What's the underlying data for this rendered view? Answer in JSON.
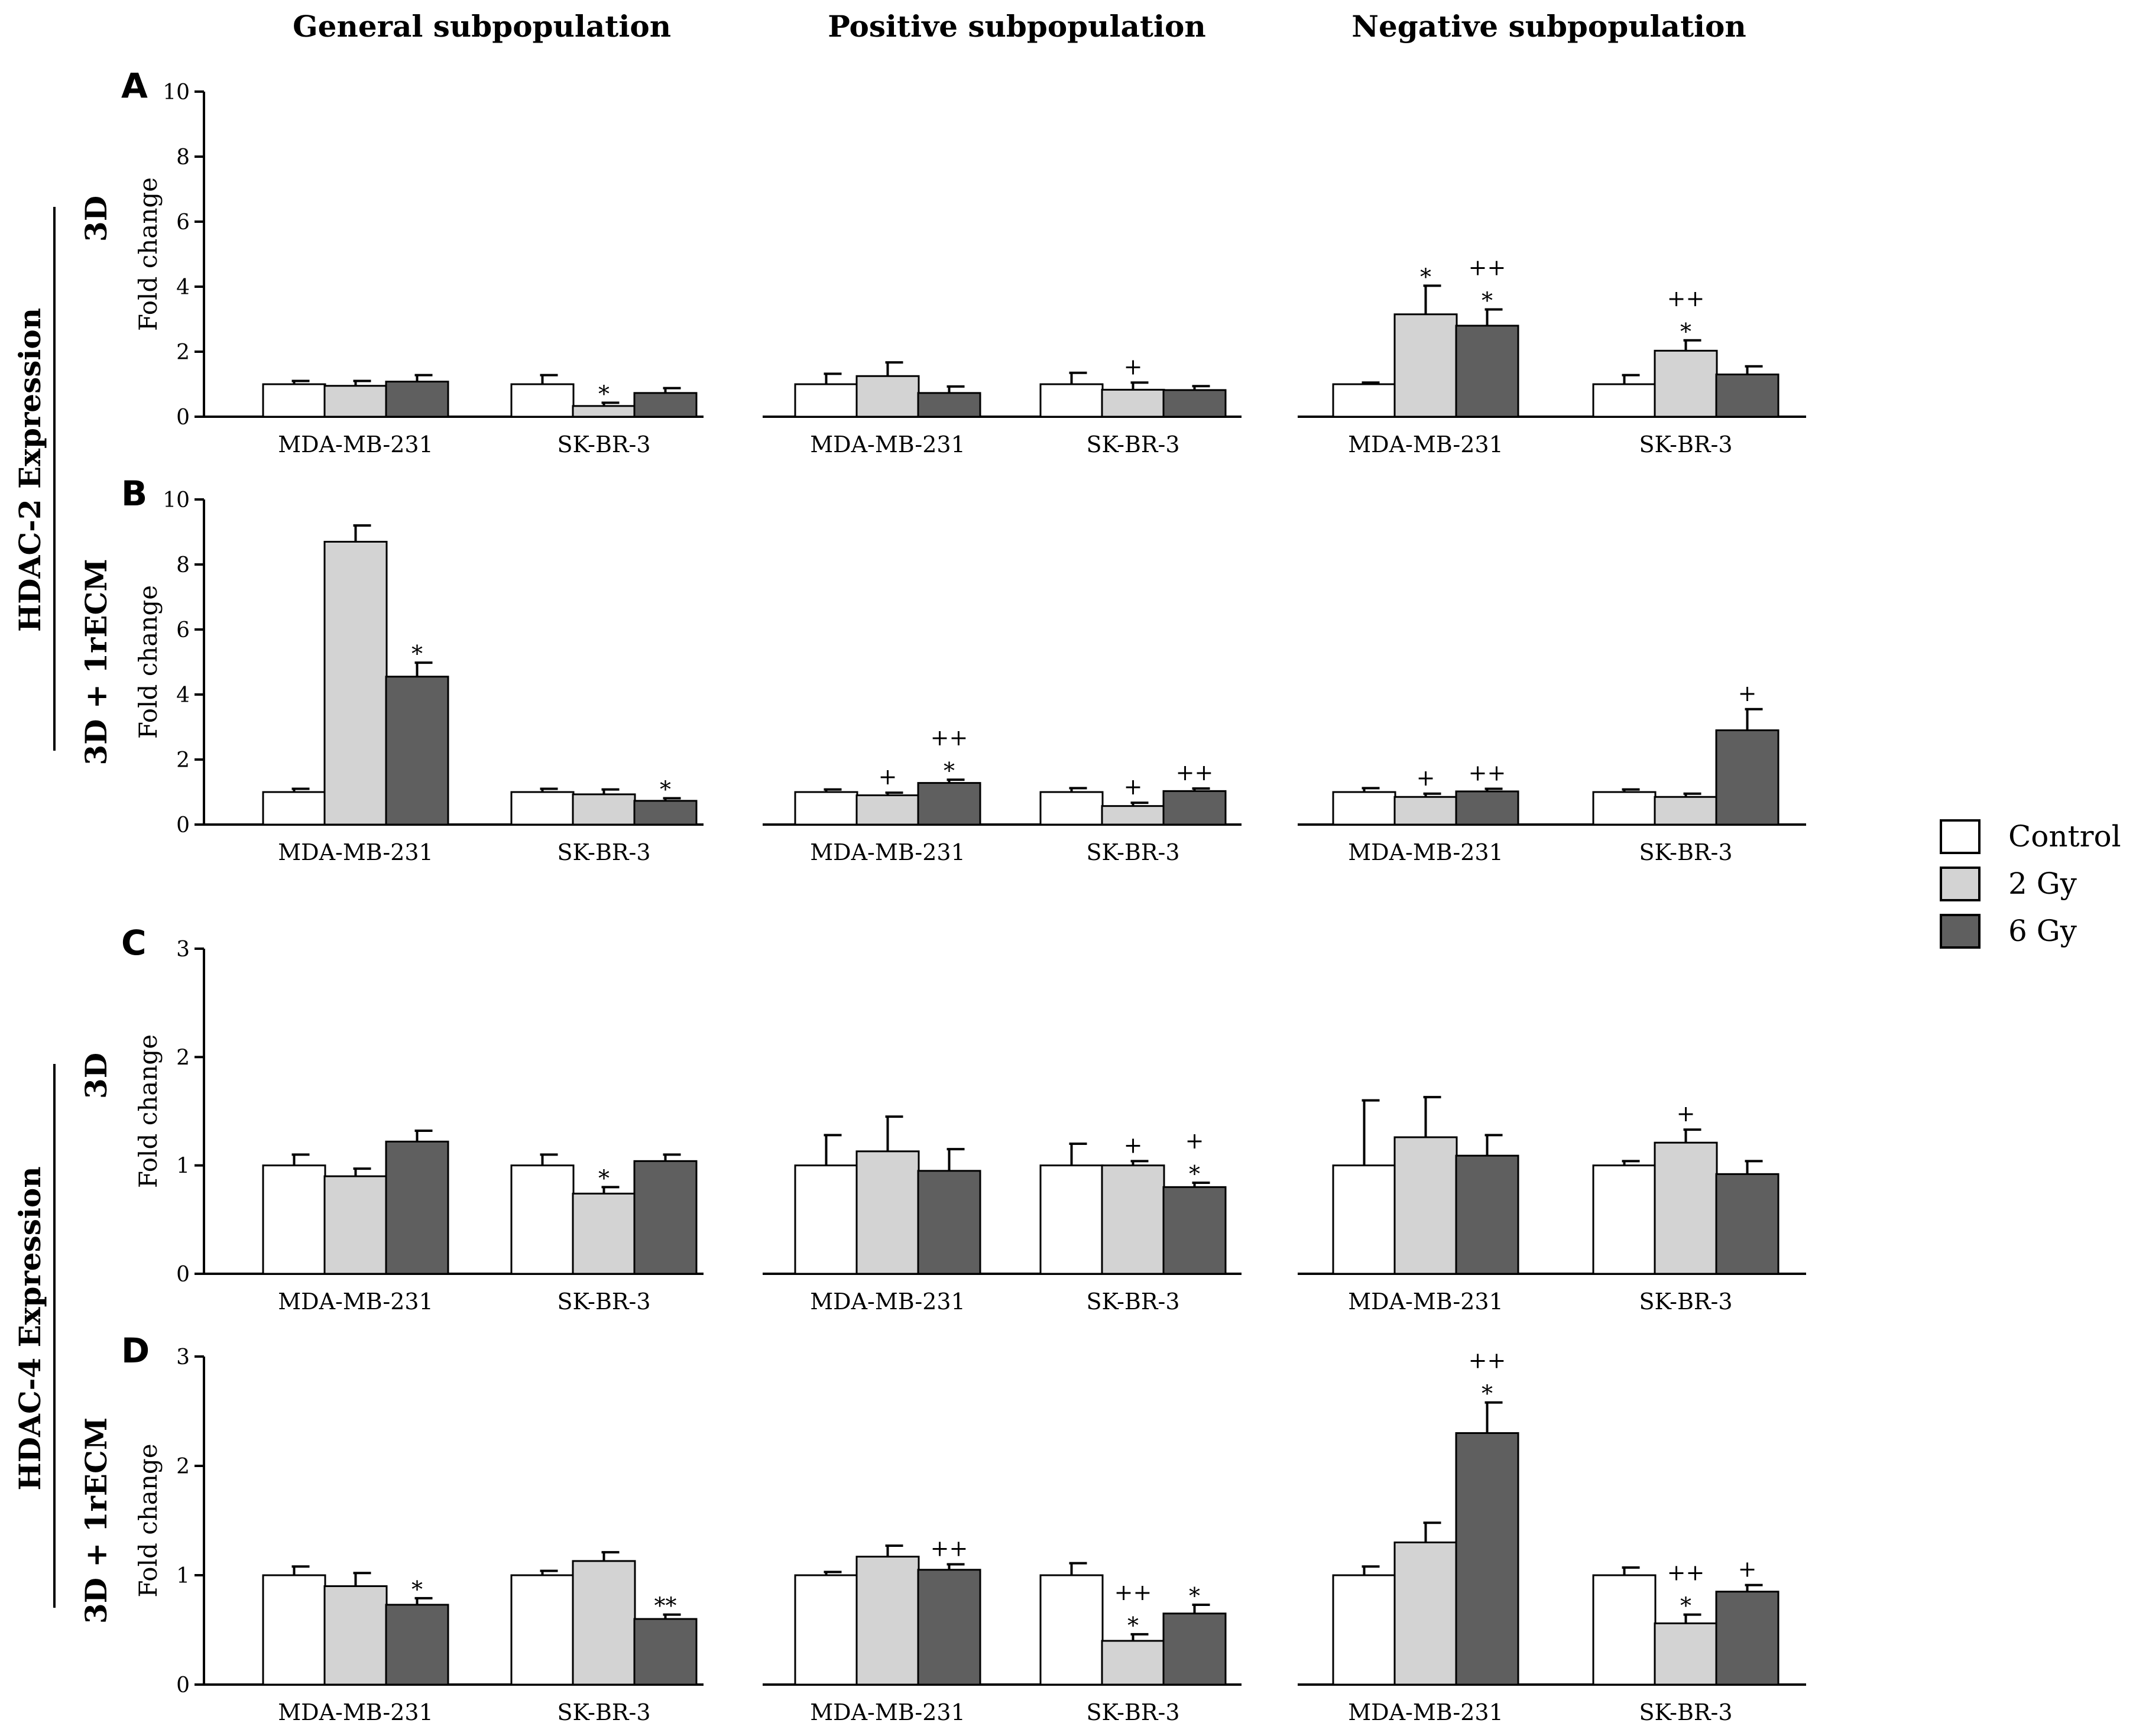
{
  "chart_data": {
    "type": "bar",
    "column_titles": [
      "General  subpopulation",
      "Positive subpopulation",
      "Negative subpopulation"
    ],
    "row_group_labels": [
      "HDAC-2 Expression",
      "HDAC-4 Expression"
    ],
    "row_condition_labels": [
      "3D",
      "3D + 1rECM",
      "3D",
      "3D + 1rECM"
    ],
    "panel_labels": [
      "A",
      "B",
      "C",
      "D"
    ],
    "ylabel": "Fold change",
    "categories": [
      "MDA-MB-231",
      "SK-BR-3"
    ],
    "legend": [
      {
        "name": "Control",
        "color": "#ffffff"
      },
      {
        "name": "2 Gy",
        "color": "#d3d3d3"
      },
      {
        "name": "6 Gy",
        "color": "#5f5f5f"
      }
    ],
    "rows": [
      {
        "panel": "A",
        "ylim": [
          0,
          10
        ],
        "yticks": [
          "0",
          "2",
          "4",
          "6",
          "8",
          "10"
        ],
        "charts": [
          {
            "subpopulation": "General  subpopulation",
            "values": [
              [
                1.0,
                0.95,
                1.08
              ],
              [
                1.0,
                0.33,
                0.73
              ]
            ],
            "errors": [
              [
                0.1,
                0.15,
                0.2
              ],
              [
                0.28,
                0.1,
                0.15
              ]
            ],
            "annotations": [
              [
                "",
                "",
                ""
              ],
              [
                "",
                "*",
                ""
              ]
            ]
          },
          {
            "subpopulation": "Positive subpopulation",
            "values": [
              [
                1.0,
                1.25,
                0.73
              ],
              [
                1.0,
                0.83,
                0.82
              ]
            ],
            "errors": [
              [
                0.32,
                0.42,
                0.2
              ],
              [
                0.35,
                0.22,
                0.12
              ]
            ],
            "annotations": [
              [
                "",
                "",
                ""
              ],
              [
                "",
                "+",
                ""
              ]
            ]
          },
          {
            "subpopulation": "Negative subpopulation",
            "values": [
              [
                1.0,
                3.15,
                2.8
              ],
              [
                1.0,
                2.03,
                1.3
              ]
            ],
            "errors": [
              [
                0.05,
                0.88,
                0.5
              ],
              [
                0.28,
                0.32,
                0.25
              ]
            ],
            "annotations": [
              [
                "",
                "*",
                "++\n*"
              ],
              [
                "",
                "++\n*",
                ""
              ]
            ]
          }
        ]
      },
      {
        "panel": "B",
        "ylim": [
          0,
          10
        ],
        "yticks": [
          "0",
          "2",
          "4",
          "6",
          "8",
          "10"
        ],
        "charts": [
          {
            "subpopulation": "General  subpopulation",
            "values": [
              [
                1.0,
                8.7,
                4.55
              ],
              [
                1.0,
                0.93,
                0.73
              ]
            ],
            "errors": [
              [
                0.1,
                0.5,
                0.43
              ],
              [
                0.1,
                0.15,
                0.08
              ]
            ],
            "annotations": [
              [
                "",
                "",
                "*"
              ],
              [
                "",
                "",
                "*"
              ]
            ]
          },
          {
            "subpopulation": "Positive subpopulation",
            "values": [
              [
                1.0,
                0.9,
                1.28
              ],
              [
                1.0,
                0.57,
                1.03
              ]
            ],
            "errors": [
              [
                0.08,
                0.08,
                0.1
              ],
              [
                0.12,
                0.1,
                0.08
              ]
            ],
            "annotations": [
              [
                "",
                "+",
                "++\n*"
              ],
              [
                "",
                "+",
                "++"
              ]
            ]
          },
          {
            "subpopulation": "Negative subpopulation",
            "values": [
              [
                1.0,
                0.85,
                1.02
              ],
              [
                1.0,
                0.85,
                2.9
              ]
            ],
            "errors": [
              [
                0.12,
                0.1,
                0.08
              ],
              [
                0.08,
                0.1,
                0.65
              ]
            ],
            "annotations": [
              [
                "",
                "+",
                "++"
              ],
              [
                "",
                "",
                "+"
              ]
            ]
          }
        ]
      },
      {
        "panel": "C",
        "ylim": [
          0,
          3
        ],
        "yticks": [
          "0",
          "1",
          "2",
          "3"
        ],
        "charts": [
          {
            "subpopulation": "General  subpopulation",
            "values": [
              [
                1.0,
                0.9,
                1.22
              ],
              [
                1.0,
                0.74,
                1.04
              ]
            ],
            "errors": [
              [
                0.1,
                0.07,
                0.1
              ],
              [
                0.1,
                0.06,
                0.06
              ]
            ],
            "annotations": [
              [
                "",
                "",
                ""
              ],
              [
                "",
                "*",
                ""
              ]
            ]
          },
          {
            "subpopulation": "Positive subpopulation",
            "values": [
              [
                1.0,
                1.13,
                0.95
              ],
              [
                1.0,
                1.0,
                0.8
              ]
            ],
            "errors": [
              [
                0.28,
                0.32,
                0.2
              ],
              [
                0.2,
                0.04,
                0.04
              ]
            ],
            "annotations": [
              [
                "",
                "",
                ""
              ],
              [
                "",
                "+",
                "+\n*"
              ]
            ]
          },
          {
            "subpopulation": "Negative subpopulation",
            "values": [
              [
                1.0,
                1.26,
                1.09
              ],
              [
                1.0,
                1.21,
                0.92
              ]
            ],
            "errors": [
              [
                0.6,
                0.37,
                0.19
              ],
              [
                0.04,
                0.12,
                0.12
              ]
            ],
            "annotations": [
              [
                "",
                "",
                ""
              ],
              [
                "",
                "+",
                ""
              ]
            ]
          }
        ]
      },
      {
        "panel": "D",
        "ylim": [
          0,
          3
        ],
        "yticks": [
          "0",
          "1",
          "2",
          "3"
        ],
        "charts": [
          {
            "subpopulation": "General  subpopulation",
            "values": [
              [
                1.0,
                0.9,
                0.73
              ],
              [
                1.0,
                1.13,
                0.6
              ]
            ],
            "errors": [
              [
                0.08,
                0.12,
                0.06
              ],
              [
                0.04,
                0.08,
                0.04
              ]
            ],
            "annotations": [
              [
                "",
                "",
                "*"
              ],
              [
                "",
                "",
                "**"
              ]
            ]
          },
          {
            "subpopulation": "Positive subpopulation",
            "values": [
              [
                1.0,
                1.17,
                1.05
              ],
              [
                1.0,
                0.4,
                0.65
              ]
            ],
            "errors": [
              [
                0.03,
                0.1,
                0.05
              ],
              [
                0.11,
                0.06,
                0.08
              ]
            ],
            "annotations": [
              [
                "",
                "",
                "++"
              ],
              [
                "",
                "++\n*",
                "*"
              ]
            ]
          },
          {
            "subpopulation": "Negative subpopulation",
            "values": [
              [
                1.0,
                1.3,
                2.3
              ],
              [
                1.0,
                0.56,
                0.85
              ]
            ],
            "errors": [
              [
                0.08,
                0.18,
                0.28
              ],
              [
                0.07,
                0.08,
                0.06
              ]
            ],
            "annotations": [
              [
                "",
                "",
                "++\n*"
              ],
              [
                "",
                "++\n*",
                "+"
              ]
            ]
          }
        ]
      }
    ]
  }
}
